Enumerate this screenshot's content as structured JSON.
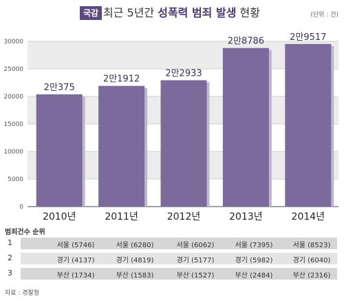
{
  "header": {
    "badge": "국감",
    "title_prefix": "최근 5년간 ",
    "title_bold": "성폭력 범죄 발생",
    "title_suffix": " 현황",
    "unit": "(단위 : 건)"
  },
  "chart_data": {
    "type": "bar",
    "categories": [
      "2010년",
      "2011년",
      "2012년",
      "2013년",
      "2014년"
    ],
    "values": [
      20375,
      21912,
      22933,
      28786,
      29517
    ],
    "data_labels": [
      "2만375",
      "2만1912",
      "2만2933",
      "2만8786",
      "2만9517"
    ],
    "yticks": [
      0,
      5000,
      10000,
      15000,
      20000,
      25000,
      30000
    ],
    "ylim": [
      0,
      30000
    ],
    "grid": true,
    "bar_color": "#7d6a9c"
  },
  "rank_table": {
    "caption": "범죄건수 순위",
    "rows": [
      {
        "rank": "1",
        "cells": [
          "서울 (5746)",
          "서울 (6280)",
          "서울 (6062)",
          "서울 (7395)",
          "서울 (8523)"
        ]
      },
      {
        "rank": "2",
        "cells": [
          "경기 (4137)",
          "경기 (4819)",
          "경기 (5177)",
          "경기 (5982)",
          "경기 (6040)"
        ]
      },
      {
        "rank": "3",
        "cells": [
          "부산 (1734)",
          "부산 (1583)",
          "부산 (1527)",
          "부산 (2484)",
          "부산 (2316)"
        ]
      }
    ]
  },
  "source": "자료 : 경찰청"
}
